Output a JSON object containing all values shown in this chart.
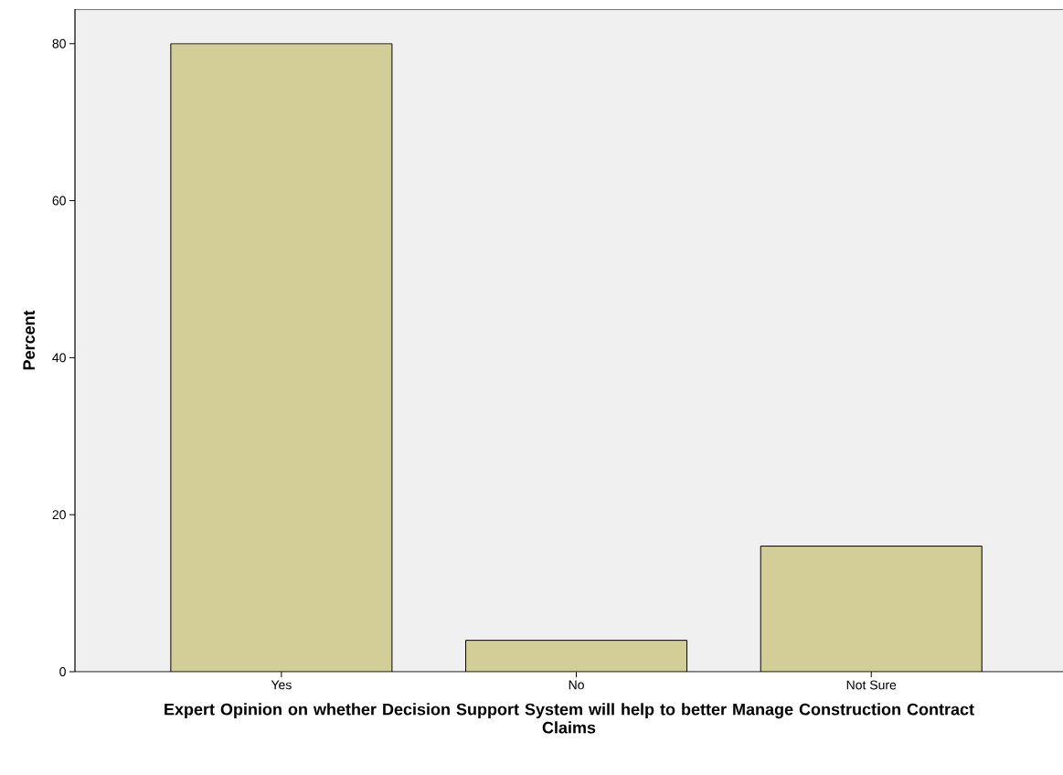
{
  "chart_data": {
    "type": "bar",
    "xlabel": "Expert Opinion on whether Decision Support System will help to better Manage Construction Contract Claims",
    "ylabel": "Percent",
    "categories": [
      "Yes",
      "No",
      "Not Sure"
    ],
    "values": [
      80,
      4,
      16
    ],
    "color": "#d3ce97",
    "ylim": [
      0,
      84.4
    ],
    "yticks": [
      0,
      20,
      40,
      60,
      80
    ],
    "grid": false
  }
}
